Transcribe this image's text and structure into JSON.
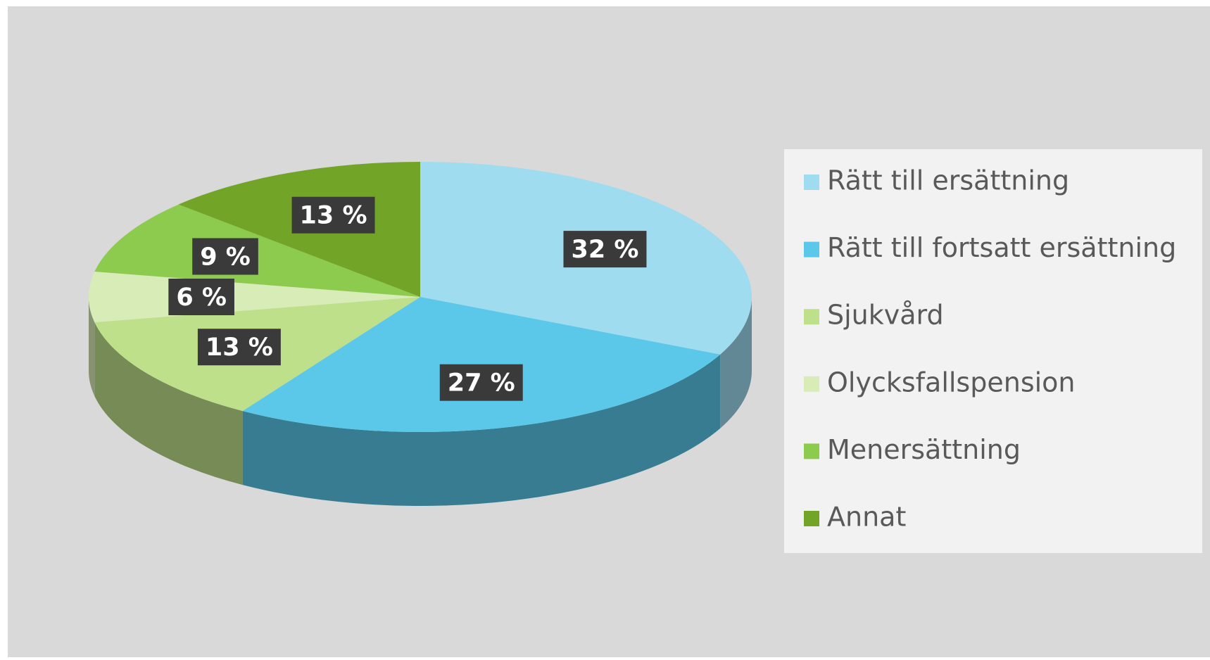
{
  "chart_data": {
    "type": "pie",
    "categories": [
      "Rätt till ersättning",
      "Rätt till fortsatt ersättning",
      "Sjukvård",
      "Olycksfallspension",
      "Menersättning",
      "Annat"
    ],
    "values": [
      32,
      27,
      13,
      6,
      9,
      13
    ],
    "value_labels": [
      "32 %",
      "27 %",
      "13 %",
      "6 %",
      "9 %",
      "13 %"
    ],
    "colors": [
      "#9fdcf0",
      "#5bc8ea",
      "#bfe08a",
      "#d8ecb8",
      "#8dcb4f",
      "#72a428"
    ],
    "legend": "right"
  }
}
